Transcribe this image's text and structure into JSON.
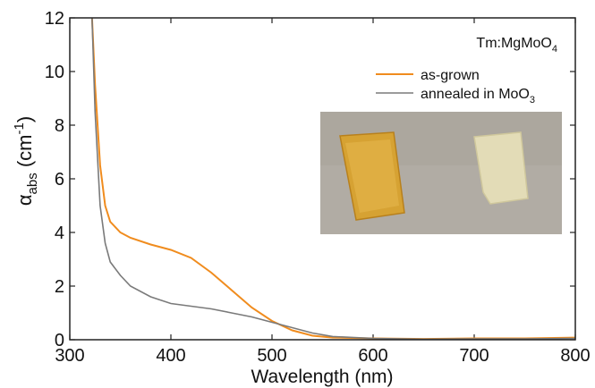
{
  "chart_data": {
    "type": "line",
    "x_label": "Wavelength (nm)",
    "y_label": [
      "α",
      "abs",
      " (cm",
      "-1",
      ")"
    ],
    "annotation": [
      "Tm:MgMoO",
      "4"
    ],
    "x": [
      322,
      325,
      330,
      335,
      340,
      350,
      360,
      380,
      400,
      420,
      440,
      460,
      480,
      500,
      520,
      540,
      560,
      600,
      650,
      700,
      750,
      800
    ],
    "series": [
      {
        "name": [
          "as-grown"
        ],
        "color": "#f08c1e",
        "values": [
          12,
          9.5,
          6.5,
          5.0,
          4.4,
          4.0,
          3.8,
          3.55,
          3.35,
          3.05,
          2.5,
          1.85,
          1.2,
          0.7,
          0.35,
          0.15,
          0.08,
          0.05,
          0.03,
          0.05,
          0.05,
          0.08
        ]
      },
      {
        "name": [
          "annealed in MoO",
          "3"
        ],
        "color": "#7a7a7a",
        "values": [
          12,
          8.5,
          5.0,
          3.6,
          2.9,
          2.4,
          2.0,
          1.6,
          1.35,
          1.25,
          1.15,
          1.0,
          0.85,
          0.65,
          0.45,
          0.25,
          0.12,
          0.05,
          0.02,
          0.03,
          0.03,
          0.05
        ]
      }
    ],
    "xlim": [
      300,
      800
    ],
    "xticks": [
      300,
      400,
      500,
      600,
      700,
      800
    ],
    "ylim": [
      0,
      12
    ],
    "yticks": [
      0,
      2,
      4,
      6,
      8,
      10,
      12
    ]
  }
}
